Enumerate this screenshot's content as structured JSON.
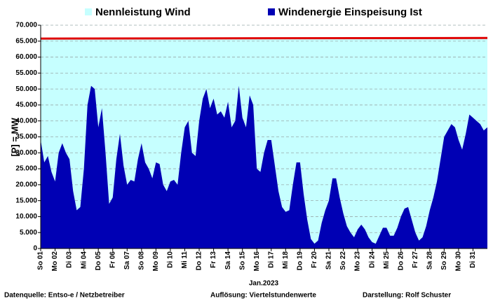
{
  "chart_data": {
    "type": "area",
    "legend_position": "top",
    "ylabel": "[P] = MW",
    "xlabel": "Jan.2023",
    "footer": [
      "Datenquelle:  Entso-e  / Netzbetreiber",
      "Auflösung:  Viertelstundenwerte",
      "Darstellung:  Rolf Schuster"
    ],
    "grid": true,
    "xlim": [
      1,
      32
    ],
    "ylim": [
      0,
      70000
    ],
    "yticks": [
      0,
      {
        "value": 5000,
        "label": "5.000"
      },
      {
        "value": 10000,
        "label": "10.000"
      },
      {
        "value": 15000,
        "label": "15.000"
      },
      {
        "value": 20000,
        "label": "20.000"
      },
      {
        "value": 25000,
        "label": "25.000"
      },
      {
        "value": 30000,
        "label": "30.000"
      },
      {
        "value": 35000,
        "label": "35.000"
      },
      {
        "value": 40000,
        "label": "40.000"
      },
      {
        "value": 45000,
        "label": "45.000"
      },
      {
        "value": 50000,
        "label": "50.000"
      },
      {
        "value": 55000,
        "label": "55.000"
      },
      {
        "value": 60000,
        "label": "60.000"
      },
      {
        "value": 65000,
        "label": "65.000"
      },
      {
        "value": 70000,
        "label": "70.000"
      }
    ],
    "xticks": [
      {
        "value": 1,
        "label": "So 01"
      },
      {
        "value": 2,
        "label": "Mo 02"
      },
      {
        "value": 3,
        "label": "Di 03"
      },
      {
        "value": 4,
        "label": "Mi 04"
      },
      {
        "value": 5,
        "label": "Do 05"
      },
      {
        "value": 6,
        "label": "Fr 06"
      },
      {
        "value": 7,
        "label": "Sa 07"
      },
      {
        "value": 8,
        "label": "So 08"
      },
      {
        "value": 9,
        "label": "Mo 09"
      },
      {
        "value": 10,
        "label": "Di 10"
      },
      {
        "value": 11,
        "label": "Mi 11"
      },
      {
        "value": 12,
        "label": "Do 12"
      },
      {
        "value": 13,
        "label": "Fr 13"
      },
      {
        "value": 14,
        "label": "Sa 14"
      },
      {
        "value": 15,
        "label": "So 15"
      },
      {
        "value": 16,
        "label": "Mo 16"
      },
      {
        "value": 17,
        "label": "Di 17"
      },
      {
        "value": 18,
        "label": "Mi 18"
      },
      {
        "value": 19,
        "label": "Do 19"
      },
      {
        "value": 20,
        "label": "Fr 20"
      },
      {
        "value": 21,
        "label": "Sa 21"
      },
      {
        "value": 22,
        "label": "So 22"
      },
      {
        "value": 23,
        "label": "Mo 23"
      },
      {
        "value": 24,
        "label": "Di 24"
      },
      {
        "value": 25,
        "label": "Mi 25"
      },
      {
        "value": 26,
        "label": "Do 26"
      },
      {
        "value": 27,
        "label": "Fr 27"
      },
      {
        "value": 28,
        "label": "Sa 28"
      },
      {
        "value": 29,
        "label": "So 29"
      },
      {
        "value": 30,
        "label": "Mo 30"
      },
      {
        "value": 31,
        "label": "Di 31"
      }
    ],
    "series": [
      {
        "name": "Nennleistung Wind",
        "color": "#c6ffff",
        "line_color": "#e00000",
        "x": [
          1,
          32
        ],
        "values": [
          65800,
          66000
        ]
      },
      {
        "name": "Windenergie Einspeisung Ist",
        "color": "#0000b4",
        "x": [
          1,
          1.25,
          1.5,
          1.75,
          2,
          2.25,
          2.5,
          2.75,
          3,
          3.25,
          3.5,
          3.75,
          4,
          4.25,
          4.5,
          4.75,
          5,
          5.25,
          5.5,
          5.75,
          6,
          6.25,
          6.5,
          6.75,
          7,
          7.25,
          7.5,
          7.75,
          8,
          8.25,
          8.5,
          8.75,
          9,
          9.25,
          9.5,
          9.75,
          10,
          10.25,
          10.5,
          10.75,
          11,
          11.25,
          11.5,
          11.75,
          12,
          12.25,
          12.5,
          12.75,
          13,
          13.25,
          13.5,
          13.75,
          14,
          14.25,
          14.5,
          14.75,
          15,
          15.25,
          15.5,
          15.75,
          16,
          16.25,
          16.5,
          16.75,
          17,
          17.25,
          17.5,
          17.75,
          18,
          18.25,
          18.5,
          18.75,
          19,
          19.25,
          19.5,
          19.75,
          20,
          20.25,
          20.5,
          20.75,
          21,
          21.25,
          21.5,
          21.75,
          22,
          22.25,
          22.5,
          22.75,
          23,
          23.25,
          23.5,
          23.75,
          24,
          24.25,
          24.5,
          24.75,
          25,
          25.25,
          25.5,
          25.75,
          26,
          26.25,
          26.5,
          26.75,
          27,
          27.25,
          27.5,
          27.75,
          28,
          28.25,
          28.5,
          28.75,
          29,
          29.25,
          29.5,
          29.75,
          30,
          30.25,
          30.5,
          30.75,
          31,
          31.25,
          31.5,
          31.75,
          32
        ],
        "values": [
          34000,
          27000,
          29000,
          24000,
          21000,
          30000,
          33000,
          30000,
          28000,
          18000,
          12000,
          13000,
          25000,
          45000,
          51000,
          50000,
          38000,
          44000,
          30000,
          14000,
          16000,
          28000,
          36000,
          26000,
          20000,
          21500,
          21000,
          28000,
          33000,
          27000,
          25000,
          22000,
          27000,
          26500,
          20000,
          18000,
          21000,
          21500,
          20000,
          30000,
          38000,
          40000,
          30000,
          29000,
          40000,
          47000,
          50000,
          44000,
          47000,
          42000,
          43000,
          41000,
          46000,
          38000,
          40000,
          51000,
          41000,
          38000,
          48000,
          45000,
          25000,
          24000,
          30000,
          34000,
          34000,
          26000,
          18000,
          13000,
          11500,
          12000,
          20000,
          27000,
          27000,
          17000,
          9000,
          3000,
          1500,
          2500,
          8000,
          12000,
          15000,
          22000,
          22000,
          16000,
          11000,
          7000,
          5000,
          3500,
          6000,
          7500,
          6000,
          3500,
          2000,
          1500,
          4000,
          6500,
          6500,
          4000,
          4000,
          6500,
          10000,
          12500,
          13000,
          9000,
          5000,
          2500,
          3500,
          7000,
          12000,
          16000,
          21000,
          28000,
          35000,
          37000,
          39000,
          38000,
          34000,
          31000,
          36000,
          42000,
          41000,
          40000,
          39000,
          37000,
          38000
        ]
      }
    ]
  }
}
